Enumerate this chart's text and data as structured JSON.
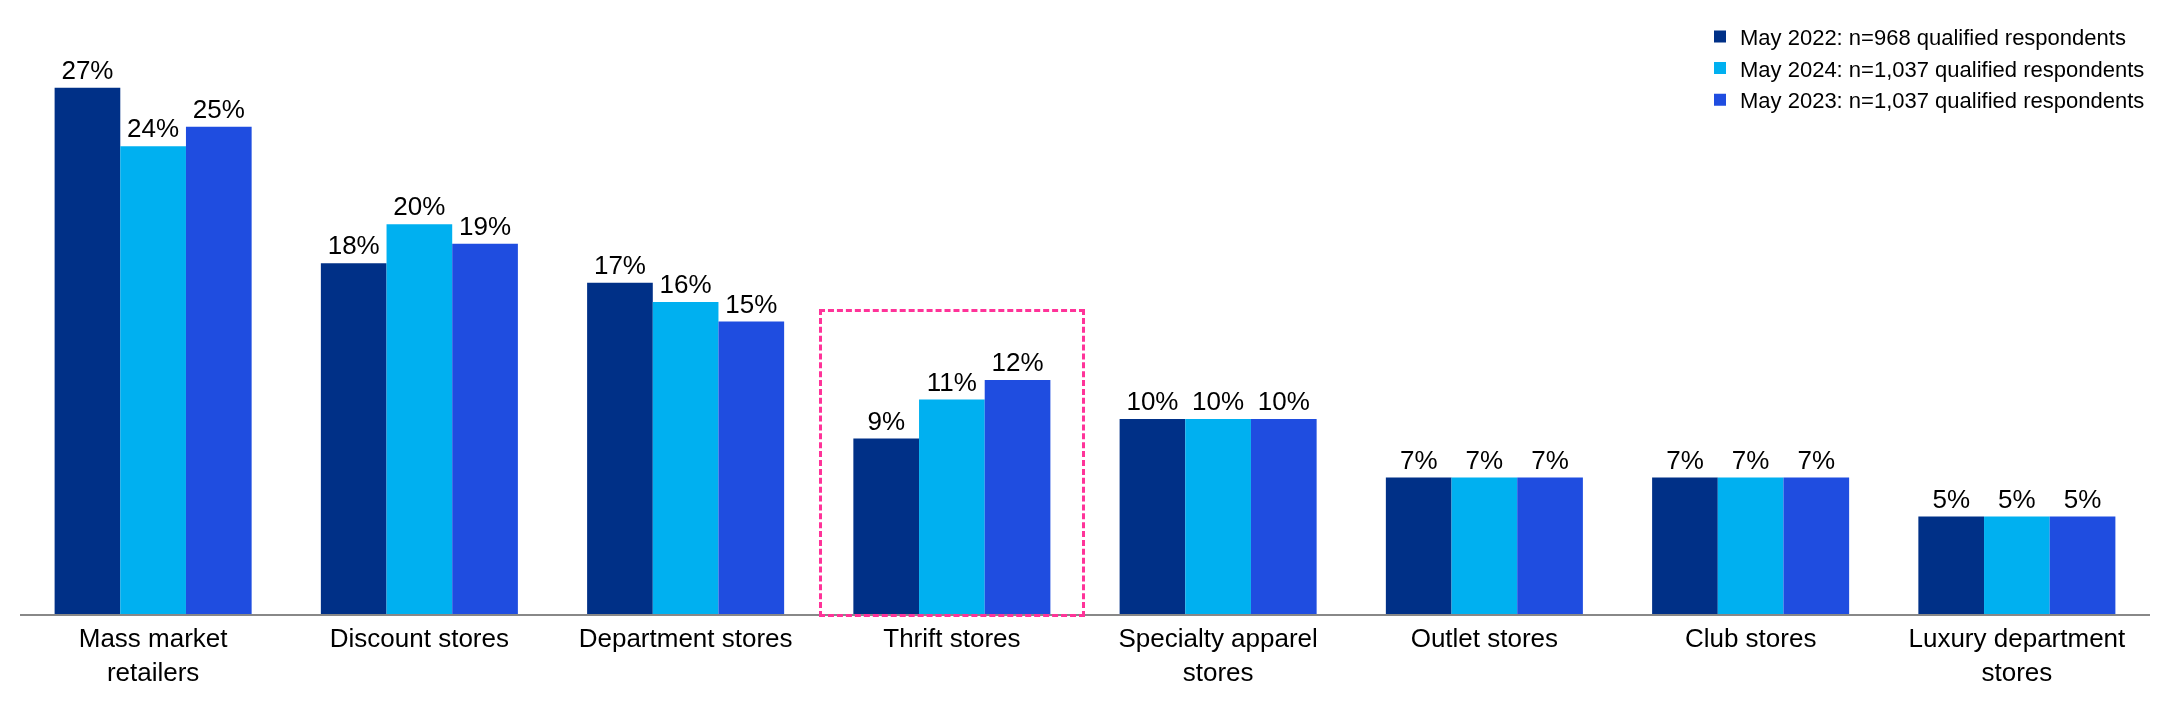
{
  "chart_data": {
    "type": "bar",
    "categories": [
      "Mass market retailers",
      "Discount stores",
      "Department stores",
      "Thrift stores",
      "Specialty apparel stores",
      "Outlet stores",
      "Club stores",
      "Luxury department stores"
    ],
    "series": [
      {
        "name": "May 2022: n=968 qualified respondents",
        "color": "#003087",
        "values": [
          27,
          18,
          17,
          9,
          10,
          7,
          7,
          5
        ],
        "value_labels": [
          "27%",
          "18%",
          "17%",
          "9%",
          "10%",
          "7%",
          "7%",
          "5%"
        ]
      },
      {
        "name": "May 2024: n=1,037 qualified respondents",
        "color": "#00b0f0",
        "values": [
          24,
          20,
          16,
          11,
          10,
          7,
          7,
          5
        ],
        "value_labels": [
          "24%",
          "20%",
          "16%",
          "11%",
          "10%",
          "7%",
          "7%",
          "5%"
        ]
      },
      {
        "name": "May 2023: n=1,037 qualified respondents",
        "color": "#1f4de0",
        "values": [
          25,
          19,
          15,
          12,
          10,
          7,
          7,
          5
        ],
        "value_labels": [
          "25%",
          "19%",
          "15%",
          "12%",
          "10%",
          "7%",
          "7%",
          "5%"
        ]
      }
    ],
    "legend": "top right",
    "grid": false
  }
}
